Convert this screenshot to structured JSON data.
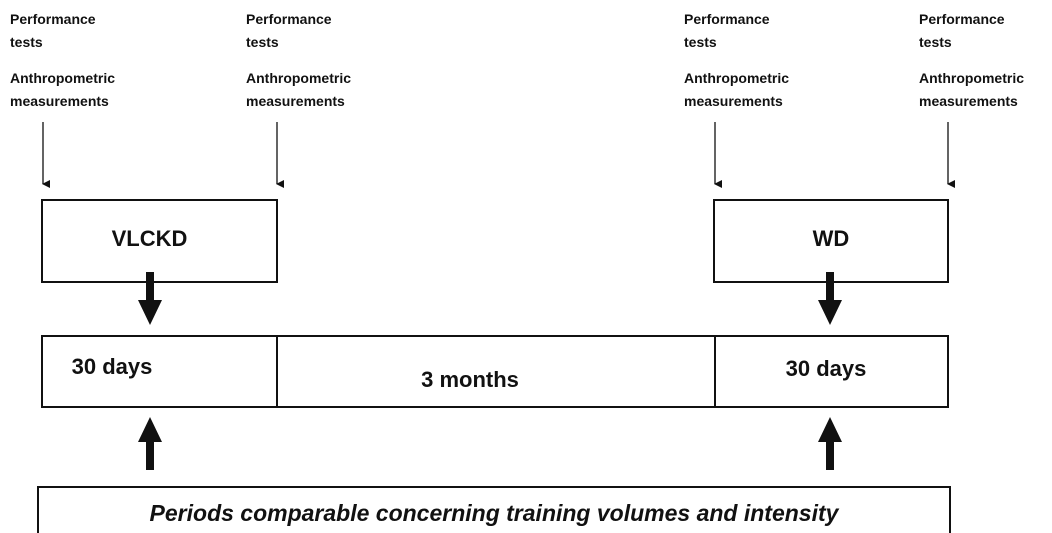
{
  "annotations": [
    {
      "performance": "Performance tests",
      "anthropometric": "Anthropometric measurements"
    },
    {
      "performance": "Performance tests",
      "anthropometric": "Anthropometric measurements"
    },
    {
      "performance": "Performance tests",
      "anthropometric": "Anthropometric measurements"
    },
    {
      "performance": "Performance tests",
      "anthropometric": "Anthropometric measurements"
    }
  ],
  "diets": [
    "VLCKD",
    "WD"
  ],
  "timeline": [
    "30 days",
    "3 months",
    "30 days"
  ],
  "footer": "Periods comparable concerning training volumes and intensity"
}
